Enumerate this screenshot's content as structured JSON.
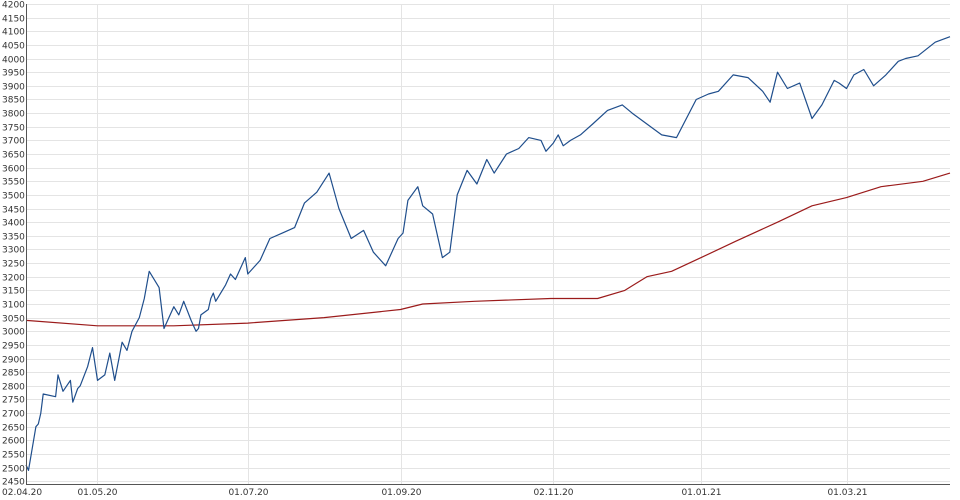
{
  "chart_data": {
    "type": "line",
    "title": "",
    "xlabel": "",
    "ylabel": "",
    "ylim": [
      2440,
      4200
    ],
    "xlim": [
      "2020-04-02",
      "2021-04-12"
    ],
    "grid": true,
    "legend": "none",
    "y_ticks": [
      2450,
      2500,
      2550,
      2600,
      2650,
      2700,
      2750,
      2800,
      2850,
      2900,
      2950,
      3000,
      3050,
      3100,
      3150,
      3200,
      3250,
      3300,
      3350,
      3400,
      3450,
      3500,
      3550,
      3600,
      3650,
      3700,
      3750,
      3800,
      3850,
      3900,
      3950,
      4000,
      4050,
      4100,
      4150,
      4200
    ],
    "x_ticks": [
      {
        "date": "2020-04-02",
        "label": "02.04.20"
      },
      {
        "date": "2020-05-01",
        "label": "01.05.20"
      },
      {
        "date": "2020-07-01",
        "label": "01.07.20"
      },
      {
        "date": "2020-09-01",
        "label": "01.09.20"
      },
      {
        "date": "2020-11-02",
        "label": "02.11.20"
      },
      {
        "date": "2021-01-01",
        "label": "01.01.21"
      },
      {
        "date": "2021-03-01",
        "label": "01.03.21"
      }
    ],
    "series": [
      {
        "color": "#1f4e8c",
        "x": [
          "2020-04-02",
          "2020-04-03",
          "2020-04-06",
          "2020-04-07",
          "2020-04-08",
          "2020-04-09",
          "2020-04-14",
          "2020-04-15",
          "2020-04-17",
          "2020-04-20",
          "2020-04-21",
          "2020-04-23",
          "2020-04-24",
          "2020-04-27",
          "2020-04-29",
          "2020-04-30",
          "2020-05-01",
          "2020-05-04",
          "2020-05-06",
          "2020-05-08",
          "2020-05-11",
          "2020-05-13",
          "2020-05-15",
          "2020-05-18",
          "2020-05-20",
          "2020-05-22",
          "2020-05-26",
          "2020-05-28",
          "2020-06-01",
          "2020-06-03",
          "2020-06-05",
          "2020-06-08",
          "2020-06-10",
          "2020-06-11",
          "2020-06-12",
          "2020-06-15",
          "2020-06-16",
          "2020-06-17",
          "2020-06-18",
          "2020-06-22",
          "2020-06-24",
          "2020-06-26",
          "2020-06-29",
          "2020-06-30",
          "2020-07-01",
          "2020-07-06",
          "2020-07-10",
          "2020-07-15",
          "2020-07-20",
          "2020-07-24",
          "2020-07-29",
          "2020-08-03",
          "2020-08-07",
          "2020-08-12",
          "2020-08-17",
          "2020-08-21",
          "2020-08-26",
          "2020-08-31",
          "2020-09-02",
          "2020-09-03",
          "2020-09-04",
          "2020-09-08",
          "2020-09-10",
          "2020-09-14",
          "2020-09-18",
          "2020-09-21",
          "2020-09-24",
          "2020-09-28",
          "2020-10-02",
          "2020-10-06",
          "2020-10-09",
          "2020-10-14",
          "2020-10-19",
          "2020-10-23",
          "2020-10-28",
          "2020-10-30",
          "2020-11-02",
          "2020-11-04",
          "2020-11-06",
          "2020-11-09",
          "2020-11-13",
          "2020-11-18",
          "2020-11-24",
          "2020-11-30",
          "2020-12-04",
          "2020-12-10",
          "2020-12-16",
          "2020-12-22",
          "2020-12-30",
          "2021-01-04",
          "2021-01-08",
          "2021-01-14",
          "2021-01-20",
          "2021-01-26",
          "2021-01-29",
          "2021-02-01",
          "2021-02-05",
          "2021-02-10",
          "2021-02-15",
          "2021-02-19",
          "2021-02-24",
          "2021-02-26",
          "2021-03-01",
          "2021-03-04",
          "2021-03-08",
          "2021-03-12",
          "2021-03-17",
          "2021-03-22",
          "2021-03-25",
          "2021-03-30",
          "2021-04-06",
          "2021-04-12"
        ],
        "values": [
          2510,
          2490,
          2650,
          2660,
          2700,
          2770,
          2760,
          2840,
          2780,
          2820,
          2740,
          2790,
          2800,
          2870,
          2940,
          2880,
          2820,
          2840,
          2920,
          2820,
          2960,
          2930,
          3000,
          3050,
          3120,
          3220,
          3160,
          3010,
          3090,
          3060,
          3110,
          3040,
          3000,
          3010,
          3060,
          3080,
          3120,
          3140,
          3110,
          3170,
          3210,
          3190,
          3250,
          3270,
          3210,
          3260,
          3340,
          3360,
          3380,
          3470,
          3510,
          3580,
          3450,
          3340,
          3370,
          3290,
          3240,
          3340,
          3360,
          3420,
          3480,
          3530,
          3460,
          3430,
          3270,
          3290,
          3500,
          3590,
          3540,
          3630,
          3580,
          3650,
          3670,
          3710,
          3700,
          3660,
          3690,
          3720,
          3680,
          3700,
          3720,
          3760,
          3810,
          3830,
          3800,
          3760,
          3720,
          3710,
          3850,
          3870,
          3880,
          3940,
          3930,
          3880,
          3840,
          3950,
          3890,
          3910,
          3780,
          3830,
          3920,
          3910,
          3890,
          3940,
          3960,
          3900,
          3940,
          3990,
          4000,
          4010,
          4060,
          4080
        ]
      },
      {
        "color": "#9b1b1b",
        "x": [
          "2020-04-02",
          "2020-05-01",
          "2020-06-01",
          "2020-07-01",
          "2020-08-01",
          "2020-09-01",
          "2020-09-10",
          "2020-10-01",
          "2020-11-01",
          "2020-11-20",
          "2020-12-01",
          "2020-12-10",
          "2020-12-20",
          "2021-01-01",
          "2021-01-15",
          "2021-02-01",
          "2021-02-15",
          "2021-03-01",
          "2021-03-15",
          "2021-04-01",
          "2021-04-12"
        ],
        "values": [
          3040,
          3020,
          3020,
          3030,
          3050,
          3080,
          3100,
          3110,
          3120,
          3120,
          3150,
          3200,
          3220,
          3270,
          3330,
          3400,
          3460,
          3490,
          3530,
          3550,
          3580
        ]
      }
    ]
  }
}
